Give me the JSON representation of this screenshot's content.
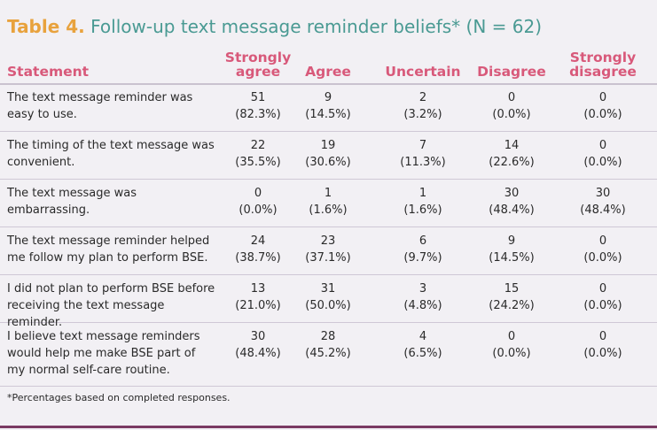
{
  "title": {
    "label": "Table 4.",
    "text": "Follow-up text message reminder beliefs* (N = 62)"
  },
  "headers": {
    "statement": "Statement",
    "strongly_agree": [
      "Strongly",
      "agree"
    ],
    "agree": "Agree",
    "uncertain": "Uncertain",
    "disagree": "Disagree",
    "strongly_disagree": [
      "Strongly",
      "disagree"
    ]
  },
  "rows": [
    {
      "statement": "The text message reminder was easy to use.",
      "values": [
        [
          "51",
          "(82.3%)"
        ],
        [
          "9",
          "(14.5%)"
        ],
        [
          "2",
          "(3.2%)"
        ],
        [
          "0",
          "(0.0%)"
        ],
        [
          "0",
          "(0.0%)"
        ]
      ]
    },
    {
      "statement": "The timing of the text message was convenient.",
      "values": [
        [
          "22",
          "(35.5%)"
        ],
        [
          "19",
          "(30.6%)"
        ],
        [
          "7",
          "(11.3%)"
        ],
        [
          "14",
          "(22.6%)"
        ],
        [
          "0",
          "(0.0%)"
        ]
      ]
    },
    {
      "statement": "The text message was embarrassing.",
      "values": [
        [
          "0",
          "(0.0%)"
        ],
        [
          "1",
          "(1.6%)"
        ],
        [
          "1",
          "(1.6%)"
        ],
        [
          "30",
          "(48.4%)"
        ],
        [
          "30",
          "(48.4%)"
        ]
      ]
    },
    {
      "statement": "The text message reminder helped me follow my plan to perform BSE.",
      "values": [
        [
          "24",
          "(38.7%)"
        ],
        [
          "23",
          "(37.1%)"
        ],
        [
          "6",
          "(9.7%)"
        ],
        [
          "9",
          "(14.5%)"
        ],
        [
          "0",
          "(0.0%)"
        ]
      ]
    },
    {
      "statement": "I did not plan to perform BSE before receiving the text message reminder.",
      "values": [
        [
          "13",
          "(21.0%)"
        ],
        [
          "31",
          "(50.0%)"
        ],
        [
          "3",
          "(4.8%)"
        ],
        [
          "15",
          "(24.2%)"
        ],
        [
          "0",
          "(0.0%)"
        ]
      ]
    },
    {
      "statement": "I believe text message reminders would help me make BSE part of my normal self-care routine.",
      "values": [
        [
          "30",
          "(48.4%)"
        ],
        [
          "28",
          "(45.2%)"
        ],
        [
          "4",
          "(6.5%)"
        ],
        [
          "0",
          "(0.0%)"
        ],
        [
          "0",
          "(0.0%)"
        ]
      ]
    }
  ],
  "footnote": "*Percentages based on completed responses.",
  "colors": {
    "label": "#e8a23d",
    "title": "#4a9a93",
    "header": "#d8597a",
    "background": "#f2f0f4",
    "bottom_rule": "#7a3a63"
  }
}
